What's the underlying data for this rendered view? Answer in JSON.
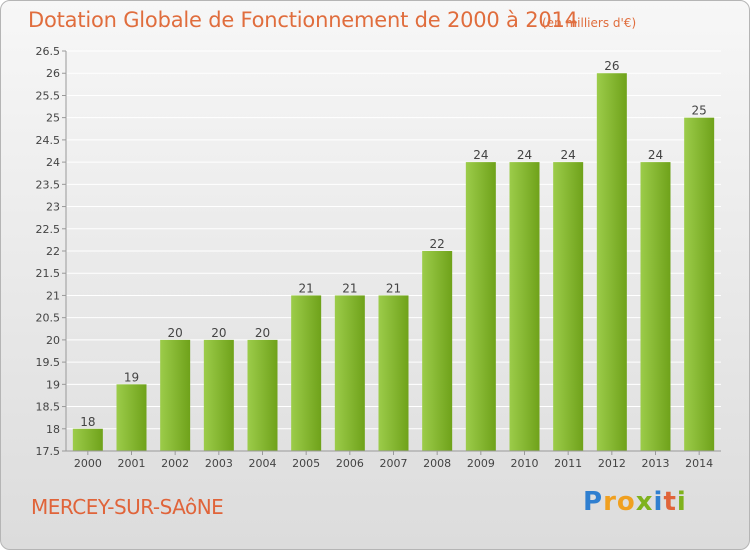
{
  "header": {
    "title": "Dotation Globale de Fonctionnement de 2000 à 2014",
    "unit": "(en milliers d'€)"
  },
  "footer": {
    "commune": "MERCEY-SUR-SAôNE",
    "logo_text": "Proxiti",
    "logo_letters": [
      {
        "ch": "P",
        "color": "#2f7fd0"
      },
      {
        "ch": "r",
        "color": "#f0a020"
      },
      {
        "ch": "o",
        "color": "#f0a020"
      },
      {
        "ch": "x",
        "color": "#7fb21d"
      },
      {
        "ch": "i",
        "color": "#2f7fd0"
      },
      {
        "ch": "t",
        "color": "#e0643a"
      },
      {
        "ch": "i",
        "color": "#7fb21d"
      }
    ]
  },
  "chart_data": {
    "type": "bar",
    "categories": [
      "2000",
      "2001",
      "2002",
      "2003",
      "2004",
      "2005",
      "2006",
      "2007",
      "2008",
      "2009",
      "2010",
      "2011",
      "2012",
      "2013",
      "2014"
    ],
    "values": [
      18,
      19,
      20,
      20,
      20,
      21,
      21,
      21,
      22,
      24,
      24,
      24,
      26,
      24,
      25
    ],
    "data_labels": [
      "18",
      "19",
      "20",
      "20",
      "20",
      "21",
      "21",
      "21",
      "22",
      "24",
      "24",
      "24",
      "26",
      "24",
      "25"
    ],
    "ylim": [
      17.5,
      26.5
    ],
    "yticks": [
      "17.5",
      "18",
      "18.5",
      "19",
      "19.5",
      "20",
      "20.5",
      "21",
      "21.5",
      "22",
      "22.5",
      "23",
      "23.5",
      "24",
      "24.5",
      "25",
      "25.5",
      "26",
      "26.5"
    ],
    "grid": true,
    "colors": {
      "bar_light": "#9ccc4a",
      "bar_dark": "#6fa21a",
      "grid": "#ffffff",
      "axis": "#999999",
      "text": "#444444"
    }
  }
}
